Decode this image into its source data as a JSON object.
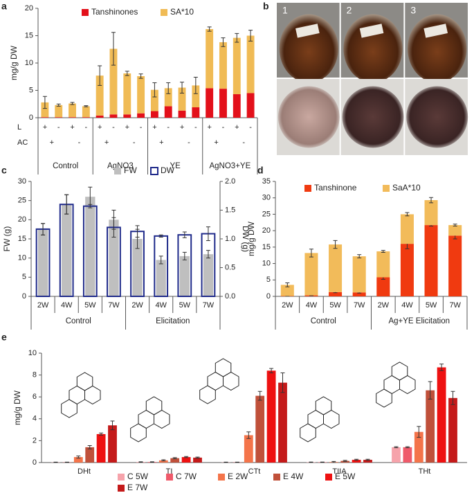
{
  "chart_data": [
    {
      "panel": "a",
      "type": "bar",
      "layout": "stacked",
      "ylabel": "mg/g DW",
      "ylim": [
        0,
        20
      ],
      "yticks": [
        0,
        5,
        10,
        15,
        20
      ],
      "series": [
        {
          "name": "Tanshinones",
          "color": "#e3101a",
          "values": [
            0.1,
            0.1,
            0.1,
            0.1,
            0.4,
            0.6,
            0.6,
            0.8,
            1.2,
            2.1,
            1.3,
            1.9,
            5.4,
            5.3,
            4.3,
            4.5
          ]
        },
        {
          "name": "SA*10",
          "color": "#f0bb55",
          "values": [
            2.7,
            2.2,
            2.5,
            2.0,
            7.3,
            12.0,
            7.5,
            6.8,
            3.9,
            3.3,
            4.2,
            4.0,
            10.8,
            8.5,
            10.3,
            10.5
          ],
          "errors": [
            1.1,
            0.2,
            0.2,
            0.1,
            1.8,
            3.0,
            0.4,
            0.4,
            1.3,
            1.0,
            1.0,
            1.5,
            0.4,
            0.8,
            0.8,
            1.0
          ]
        }
      ],
      "rows": [
        {
          "label": "L",
          "values": [
            "+",
            "-",
            "+",
            "-",
            "+",
            "-",
            "+",
            "-",
            "+",
            "-",
            "+",
            "-",
            "+",
            "-",
            "+",
            "-"
          ]
        },
        {
          "label": "AC",
          "values": [
            "+",
            "-",
            "+",
            "-",
            "+",
            "-",
            "+",
            "-"
          ]
        }
      ],
      "groups": [
        "Control",
        "AgNO3",
        "YE",
        "AgNO3+YE"
      ]
    },
    {
      "panel": "b",
      "type": "photo",
      "labels": [
        "1",
        "2",
        "3"
      ]
    },
    {
      "panel": "c",
      "type": "bar",
      "layout": "overlay",
      "ylabel": "FW (g)",
      "y2label": "DW (g)",
      "ylim": [
        0,
        30
      ],
      "yticks": [
        0,
        5,
        10,
        15,
        20,
        25,
        30
      ],
      "y2lim": [
        0,
        2
      ],
      "y2ticks": [
        {
          "value": 0,
          "label": "0.0"
        },
        {
          "value": 0.5,
          "label": "0.5"
        },
        {
          "value": 1,
          "label": "1.0"
        },
        {
          "value": 1.5,
          "label": "1.5"
        },
        {
          "value": 2,
          "label": "2.0"
        }
      ],
      "categories": [
        "2W",
        "4W",
        "5W",
        "7W",
        "2W",
        "4W",
        "5W",
        "7W"
      ],
      "groups": [
        "Control",
        "Elicitation"
      ],
      "series": [
        {
          "name": "FW",
          "color": "#bfbfbf",
          "values": [
            17.5,
            24,
            26,
            20,
            15,
            9.5,
            10.5,
            11
          ],
          "errors": [
            1.5,
            2.5,
            2.5,
            2.5,
            2.5,
            1.0,
            1.0,
            1.0
          ]
        },
        {
          "name": "DW",
          "color": "#1f2a8a",
          "style": "outline",
          "axis": "y2",
          "values": [
            1.17,
            1.6,
            1.57,
            1.2,
            1.13,
            1.05,
            1.07,
            1.09
          ],
          "errors": [
            0.1,
            0.17,
            0.03,
            0.17,
            0.1,
            0.02,
            0.05,
            0.12
          ]
        }
      ]
    },
    {
      "panel": "d",
      "type": "bar",
      "layout": "stacked",
      "ylabel": "mg/g DW",
      "ylim": [
        0,
        35
      ],
      "yticks": [
        0,
        5,
        10,
        15,
        20,
        25,
        30,
        35
      ],
      "categories": [
        "2W",
        "4W",
        "5W",
        "7W",
        "2W",
        "4W",
        "5W",
        "7W"
      ],
      "groups": [
        "Control",
        "Ag+YE Elicitation"
      ],
      "series": [
        {
          "name": "Tanshinone",
          "color": "#f03a10",
          "values": [
            0.1,
            0.3,
            1.3,
            1.2,
            5.8,
            16,
            21.7,
            18.5
          ],
          "errors": [
            0.05,
            0.1,
            0.2,
            0.2,
            0.6,
            1.5,
            0.3,
            1.0
          ]
        },
        {
          "name": "SaA*10",
          "color": "#f2bb5a",
          "values": [
            3.4,
            12.9,
            14.5,
            11.0,
            7.9,
            9.0,
            7.6,
            3.2
          ],
          "errors": [
            0.6,
            1.2,
            1.2,
            0.5,
            0.3,
            0.5,
            0.8,
            0.3
          ]
        }
      ]
    },
    {
      "panel": "e",
      "type": "bar",
      "layout": "grouped",
      "ylabel": "mg/g DW",
      "ylim": [
        0,
        10
      ],
      "yticks": [
        0,
        2,
        4,
        6,
        8,
        10
      ],
      "categories": [
        "DHt",
        "TI",
        "CTt",
        "TIIA",
        "THt"
      ],
      "series": [
        {
          "name": "C 5W",
          "color": "#f6a3ab",
          "values": [
            0.02,
            0.05,
            0.02,
            0.03,
            1.4
          ],
          "errors": [
            0.02,
            0.02,
            0.02,
            0.02,
            0.05
          ]
        },
        {
          "name": "C 7W",
          "color": "#ef5a6a",
          "values": [
            0.02,
            0.05,
            0.02,
            0.03,
            1.4
          ],
          "errors": [
            0.02,
            0.02,
            0.02,
            0.02,
            0.05
          ]
        },
        {
          "name": "E 2W",
          "color": "#f4744a",
          "values": [
            0.5,
            0.2,
            2.5,
            0.05,
            2.8
          ],
          "errors": [
            0.1,
            0.05,
            0.3,
            0.05,
            0.5
          ]
        },
        {
          "name": "E 4W",
          "color": "#c0503a",
          "values": [
            1.4,
            0.4,
            6.1,
            0.15,
            6.6
          ],
          "errors": [
            0.15,
            0.05,
            0.4,
            0.05,
            0.8
          ]
        },
        {
          "name": "E 5W",
          "color": "#ee1111",
          "values": [
            2.6,
            0.5,
            8.4,
            0.25,
            8.7
          ],
          "errors": [
            0.1,
            0.05,
            0.2,
            0.05,
            0.3
          ]
        },
        {
          "name": "E 7W",
          "color": "#c41a1a",
          "values": [
            3.4,
            0.45,
            7.3,
            0.25,
            5.9
          ],
          "errors": [
            0.4,
            0.05,
            0.9,
            0.05,
            0.6
          ]
        }
      ]
    }
  ]
}
